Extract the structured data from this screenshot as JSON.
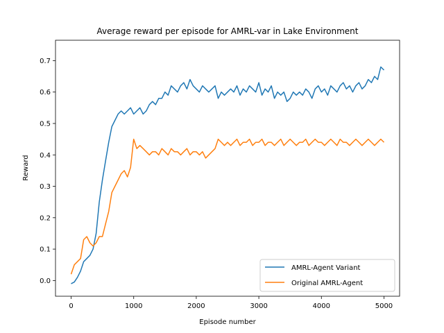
{
  "chart_data": {
    "type": "line",
    "title": "Average reward per episode for AMRL-var in Lake Environment",
    "xlabel": "Episode number",
    "ylabel": "Reward",
    "xlim": [
      -250,
      5250
    ],
    "ylim": [
      -0.05,
      0.765
    ],
    "xticks": [
      0,
      1000,
      2000,
      3000,
      4000,
      5000
    ],
    "xtick_labels": [
      "0",
      "1000",
      "2000",
      "3000",
      "4000",
      "5000"
    ],
    "yticks": [
      0.0,
      0.1,
      0.2,
      0.3,
      0.4,
      0.5,
      0.6,
      0.7
    ],
    "ytick_labels": [
      "0.0",
      "0.1",
      "0.2",
      "0.3",
      "0.4",
      "0.5",
      "0.6",
      "0.7"
    ],
    "grid": false,
    "legend_position": "lower-right",
    "series": [
      {
        "name": "AMRL-Agent Variant",
        "color": "#1f77b4",
        "x": [
          0,
          50,
          100,
          150,
          200,
          250,
          300,
          350,
          400,
          450,
          500,
          550,
          600,
          650,
          700,
          750,
          800,
          850,
          900,
          950,
          1000,
          1050,
          1100,
          1150,
          1200,
          1250,
          1300,
          1350,
          1400,
          1450,
          1500,
          1550,
          1600,
          1650,
          1700,
          1750,
          1800,
          1850,
          1900,
          1950,
          2000,
          2050,
          2100,
          2150,
          2200,
          2250,
          2300,
          2350,
          2400,
          2450,
          2500,
          2550,
          2600,
          2650,
          2700,
          2750,
          2800,
          2850,
          2900,
          2950,
          3000,
          3050,
          3100,
          3150,
          3200,
          3250,
          3300,
          3350,
          3400,
          3450,
          3500,
          3550,
          3600,
          3650,
          3700,
          3750,
          3800,
          3850,
          3900,
          3950,
          4000,
          4050,
          4100,
          4150,
          4200,
          4250,
          4300,
          4350,
          4400,
          4450,
          4500,
          4550,
          4600,
          4650,
          4700,
          4750,
          4800,
          4850,
          4900,
          4950,
          5000
        ],
        "values": [
          -0.01,
          -0.005,
          0.01,
          0.03,
          0.06,
          0.07,
          0.08,
          0.1,
          0.15,
          0.25,
          0.32,
          0.38,
          0.44,
          0.49,
          0.51,
          0.53,
          0.54,
          0.53,
          0.54,
          0.55,
          0.53,
          0.54,
          0.55,
          0.53,
          0.54,
          0.56,
          0.57,
          0.56,
          0.58,
          0.58,
          0.6,
          0.59,
          0.62,
          0.61,
          0.6,
          0.62,
          0.63,
          0.61,
          0.64,
          0.62,
          0.61,
          0.6,
          0.62,
          0.61,
          0.6,
          0.61,
          0.62,
          0.58,
          0.6,
          0.59,
          0.6,
          0.61,
          0.6,
          0.62,
          0.59,
          0.61,
          0.6,
          0.62,
          0.61,
          0.6,
          0.63,
          0.59,
          0.61,
          0.6,
          0.62,
          0.58,
          0.6,
          0.59,
          0.6,
          0.57,
          0.58,
          0.6,
          0.59,
          0.6,
          0.59,
          0.61,
          0.6,
          0.58,
          0.61,
          0.62,
          0.6,
          0.61,
          0.59,
          0.62,
          0.61,
          0.6,
          0.62,
          0.63,
          0.61,
          0.62,
          0.6,
          0.62,
          0.63,
          0.61,
          0.62,
          0.64,
          0.63,
          0.65,
          0.64,
          0.68,
          0.67
        ]
      },
      {
        "name": "Original AMRL-Agent",
        "color": "#ff7f0e",
        "x": [
          0,
          50,
          100,
          150,
          200,
          250,
          300,
          350,
          400,
          450,
          500,
          550,
          600,
          650,
          700,
          750,
          800,
          850,
          900,
          950,
          1000,
          1050,
          1100,
          1150,
          1200,
          1250,
          1300,
          1350,
          1400,
          1450,
          1500,
          1550,
          1600,
          1650,
          1700,
          1750,
          1800,
          1850,
          1900,
          1950,
          2000,
          2050,
          2100,
          2150,
          2200,
          2250,
          2300,
          2350,
          2400,
          2450,
          2500,
          2550,
          2600,
          2650,
          2700,
          2750,
          2800,
          2850,
          2900,
          2950,
          3000,
          3050,
          3100,
          3150,
          3200,
          3250,
          3300,
          3350,
          3400,
          3450,
          3500,
          3550,
          3600,
          3650,
          3700,
          3750,
          3800,
          3850,
          3900,
          3950,
          4000,
          4050,
          4100,
          4150,
          4200,
          4250,
          4300,
          4350,
          4400,
          4450,
          4500,
          4550,
          4600,
          4650,
          4700,
          4750,
          4800,
          4850,
          4900,
          4950,
          5000
        ],
        "values": [
          0.02,
          0.05,
          0.06,
          0.07,
          0.13,
          0.14,
          0.12,
          0.11,
          0.12,
          0.14,
          0.14,
          0.18,
          0.22,
          0.28,
          0.3,
          0.32,
          0.34,
          0.35,
          0.33,
          0.36,
          0.45,
          0.42,
          0.43,
          0.42,
          0.41,
          0.4,
          0.41,
          0.41,
          0.4,
          0.42,
          0.41,
          0.4,
          0.42,
          0.41,
          0.41,
          0.4,
          0.41,
          0.42,
          0.4,
          0.41,
          0.41,
          0.4,
          0.41,
          0.39,
          0.4,
          0.41,
          0.42,
          0.45,
          0.44,
          0.43,
          0.44,
          0.43,
          0.44,
          0.45,
          0.43,
          0.44,
          0.44,
          0.45,
          0.43,
          0.44,
          0.44,
          0.45,
          0.43,
          0.44,
          0.44,
          0.43,
          0.44,
          0.45,
          0.43,
          0.44,
          0.45,
          0.44,
          0.43,
          0.44,
          0.44,
          0.45,
          0.43,
          0.44,
          0.45,
          0.44,
          0.44,
          0.43,
          0.44,
          0.45,
          0.44,
          0.43,
          0.45,
          0.44,
          0.44,
          0.43,
          0.44,
          0.45,
          0.44,
          0.43,
          0.44,
          0.45,
          0.44,
          0.43,
          0.44,
          0.45,
          0.44
        ]
      }
    ]
  }
}
